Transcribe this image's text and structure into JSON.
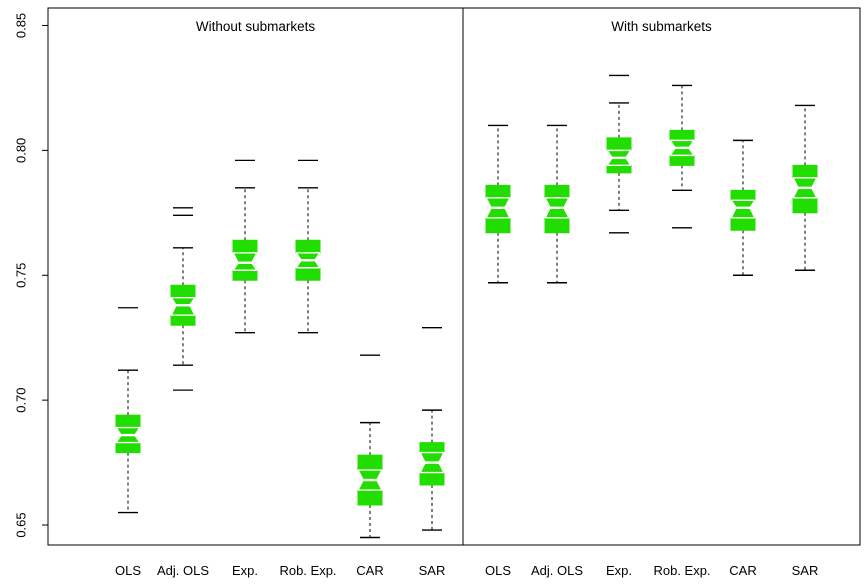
{
  "chart_data": {
    "type": "boxplot",
    "notched": true,
    "y_ticks": [
      "0.65",
      "0.70",
      "0.75",
      "0.80",
      "0.85"
    ],
    "y_tick_values": [
      0.65,
      0.7,
      0.75,
      0.8,
      0.85
    ],
    "ylim": [
      0.642,
      0.857
    ],
    "grid": false,
    "legend": "none",
    "colors": {
      "box_fill": "#22dd00",
      "notch_band": "#ffffff",
      "lines": "#000000"
    },
    "panels": [
      {
        "title": "Without submarkets",
        "categories": [
          "OLS",
          "Adj. OLS",
          "Exp.",
          "Rob. Exp.",
          "CAR",
          "SAR"
        ],
        "boxes": [
          {
            "q1": 0.679,
            "median": 0.686,
            "q3": 0.694,
            "notch_low": 0.683,
            "notch_high": 0.689,
            "whisker_low": 0.655,
            "whisker_high": 0.712,
            "outliers": [
              0.737
            ]
          },
          {
            "q1": 0.73,
            "median": 0.738,
            "q3": 0.746,
            "notch_low": 0.734,
            "notch_high": 0.741,
            "whisker_low": 0.714,
            "whisker_high": 0.761,
            "outliers": [
              0.704,
              0.774,
              0.777
            ]
          },
          {
            "q1": 0.748,
            "median": 0.755,
            "q3": 0.764,
            "notch_low": 0.752,
            "notch_high": 0.759,
            "whisker_low": 0.727,
            "whisker_high": 0.785,
            "outliers": [
              0.796
            ]
          },
          {
            "q1": 0.748,
            "median": 0.756,
            "q3": 0.764,
            "notch_low": 0.753,
            "notch_high": 0.759,
            "whisker_low": 0.727,
            "whisker_high": 0.785,
            "outliers": [
              0.796
            ]
          },
          {
            "q1": 0.658,
            "median": 0.668,
            "q3": 0.678,
            "notch_low": 0.664,
            "notch_high": 0.672,
            "whisker_low": 0.645,
            "whisker_high": 0.691,
            "outliers": [
              0.718
            ]
          },
          {
            "q1": 0.666,
            "median": 0.675,
            "q3": 0.683,
            "notch_low": 0.671,
            "notch_high": 0.679,
            "whisker_low": 0.648,
            "whisker_high": 0.696,
            "outliers": [
              0.729
            ]
          }
        ]
      },
      {
        "title": "With submarkets",
        "categories": [
          "OLS",
          "Adj. OLS",
          "Exp.",
          "Rob. Exp.",
          "CAR",
          "SAR"
        ],
        "boxes": [
          {
            "q1": 0.767,
            "median": 0.777,
            "q3": 0.786,
            "notch_low": 0.773,
            "notch_high": 0.781,
            "whisker_low": 0.747,
            "whisker_high": 0.81,
            "outliers": []
          },
          {
            "q1": 0.767,
            "median": 0.777,
            "q3": 0.786,
            "notch_low": 0.773,
            "notch_high": 0.781,
            "whisker_low": 0.747,
            "whisker_high": 0.81,
            "outliers": []
          },
          {
            "q1": 0.791,
            "median": 0.797,
            "q3": 0.805,
            "notch_low": 0.794,
            "notch_high": 0.8,
            "whisker_low": 0.776,
            "whisker_high": 0.819,
            "outliers": [
              0.767,
              0.83
            ]
          },
          {
            "q1": 0.794,
            "median": 0.801,
            "q3": 0.808,
            "notch_low": 0.798,
            "notch_high": 0.804,
            "whisker_low": 0.784,
            "whisker_high": 0.826,
            "outliers": [
              0.769
            ]
          },
          {
            "q1": 0.768,
            "median": 0.777,
            "q3": 0.784,
            "notch_low": 0.773,
            "notch_high": 0.78,
            "whisker_low": 0.75,
            "whisker_high": 0.804,
            "outliers": []
          },
          {
            "q1": 0.775,
            "median": 0.785,
            "q3": 0.794,
            "notch_low": 0.781,
            "notch_high": 0.789,
            "whisker_low": 0.752,
            "whisker_high": 0.818,
            "outliers": []
          }
        ]
      }
    ]
  }
}
